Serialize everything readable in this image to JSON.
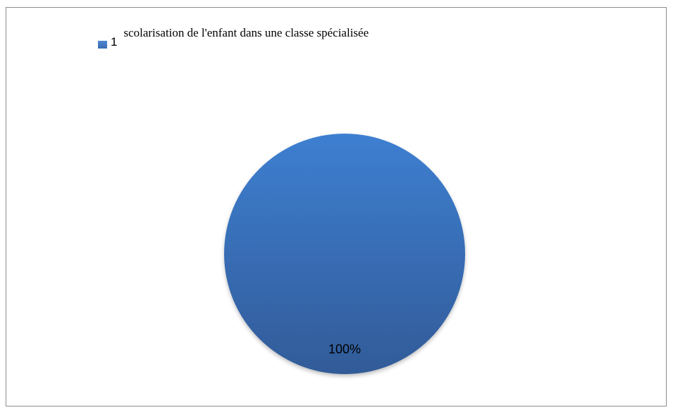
{
  "chart_data": {
    "type": "pie",
    "title": "",
    "legend_placement": "top-left",
    "series": [
      {
        "values": [
          100
        ]
      }
    ],
    "categories": [
      "scolarisation de l'enfant dans une classe spécialisée"
    ],
    "legend": {
      "series_number": "1",
      "entries": [
        "scolarisation de l'enfant dans une classe spécialisée"
      ]
    },
    "data_labels": [
      "100%"
    ],
    "colors": [
      "#3b6fb6"
    ]
  }
}
